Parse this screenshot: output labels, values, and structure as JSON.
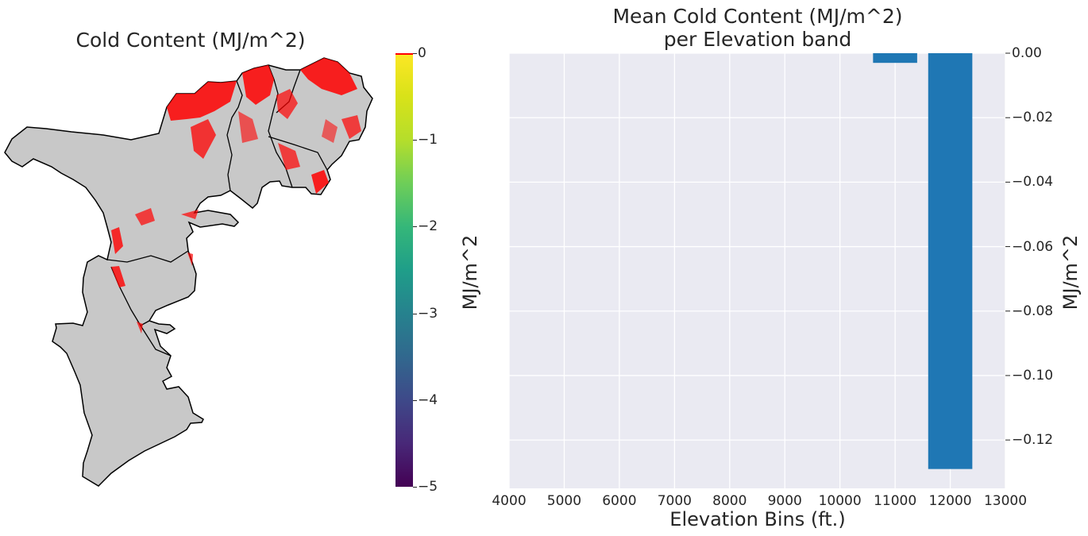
{
  "map_panel": {
    "title": "Cold Content (MJ/m^2)",
    "colorbar": {
      "label": "MJ/m^2",
      "ticks": [
        "0",
        "−1",
        "−2",
        "−3",
        "−4",
        "−5"
      ],
      "range": [
        -5,
        0
      ],
      "colormap": "viridis",
      "over_color": "#ff0000"
    },
    "basin_fill": "#c8c8c8",
    "snow_highlight": "#ff0000"
  },
  "chart_data": {
    "type": "bar",
    "title": "Mean Cold Content (MJ/m^2)\nper Elevation band",
    "title_lines": [
      "Mean Cold Content (MJ/m^2)",
      "per Elevation band"
    ],
    "xlabel": "Elevation Bins (ft.)",
    "ylabel": "MJ/m^2",
    "x": [
      11000,
      12000
    ],
    "values": [
      -0.003,
      -0.129
    ],
    "bar_width": 800,
    "xlim": [
      4000,
      13000
    ],
    "ylim": [
      -0.135,
      0
    ],
    "xticks": [
      4000,
      5000,
      6000,
      7000,
      8000,
      9000,
      10000,
      11000,
      12000,
      13000
    ],
    "yticks": [
      0,
      -0.02,
      -0.04,
      -0.06,
      -0.08,
      -0.1,
      -0.12
    ],
    "ytick_labels": [
      "0.00",
      "−0.02",
      "−0.04",
      "−0.06",
      "−0.08",
      "−0.10",
      "−0.12"
    ],
    "yaxis_side": "right",
    "grid": true,
    "bar_color": "#1f77b4",
    "background": "#eaeaf2"
  }
}
